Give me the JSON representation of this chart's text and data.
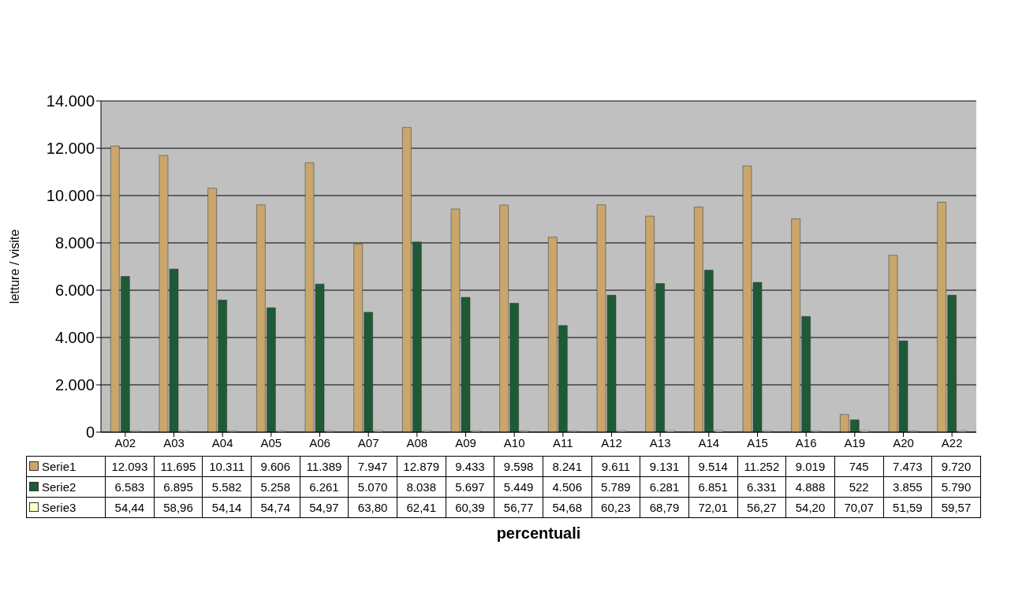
{
  "chart_data": {
    "type": "bar",
    "ylabel": "letture / visite",
    "xlabel": "percentuali",
    "categories": [
      "A02",
      "A03",
      "A04",
      "A05",
      "A06",
      "A07",
      "A08",
      "A09",
      "A10",
      "A11",
      "A12",
      "A13",
      "A14",
      "A15",
      "A16",
      "A19",
      "A20",
      "A22"
    ],
    "series": [
      {
        "name": "Serie1",
        "color": "#c9a66b",
        "values": [
          12093,
          11695,
          10311,
          9606,
          11389,
          7947,
          12879,
          9433,
          9598,
          8241,
          9611,
          9131,
          9514,
          11252,
          9019,
          745,
          7473,
          9720
        ],
        "value_labels": [
          "12.093",
          "11.695",
          "10.311",
          "9.606",
          "11.389",
          "7.947",
          "12.879",
          "9.433",
          "9.598",
          "8.241",
          "9.611",
          "9.131",
          "9.514",
          "11.252",
          "9.019",
          "745",
          "7.473",
          "9.720"
        ]
      },
      {
        "name": "Serie2",
        "color": "#1f5a36",
        "values": [
          6583,
          6895,
          5582,
          5258,
          6261,
          5070,
          8038,
          5697,
          5449,
          4506,
          5789,
          6281,
          6851,
          6331,
          4888,
          522,
          3855,
          5790
        ],
        "value_labels": [
          "6.583",
          "6.895",
          "5.582",
          "5.258",
          "6.261",
          "5.070",
          "8.038",
          "5.697",
          "5.449",
          "4.506",
          "5.789",
          "6.281",
          "6.851",
          "6.331",
          "4.888",
          "522",
          "3.855",
          "5.790"
        ]
      },
      {
        "name": "Serie3",
        "color": "#ffffc0",
        "values": [
          54.44,
          58.96,
          54.14,
          54.74,
          54.97,
          63.8,
          62.41,
          60.39,
          56.77,
          54.68,
          60.23,
          68.79,
          72.01,
          56.27,
          54.2,
          70.07,
          51.59,
          59.57
        ],
        "value_labels": [
          "54,44",
          "58,96",
          "54,14",
          "54,74",
          "54,97",
          "63,80",
          "62,41",
          "60,39",
          "56,77",
          "54,68",
          "60,23",
          "68,79",
          "72,01",
          "56,27",
          "54,20",
          "70,07",
          "51,59",
          "59,57"
        ]
      }
    ],
    "ylim": [
      0,
      14000
    ],
    "yticks": [
      {
        "value": 0,
        "label": "0"
      },
      {
        "value": 2000,
        "label": "2.000"
      },
      {
        "value": 4000,
        "label": "4.000"
      },
      {
        "value": 6000,
        "label": "6.000"
      },
      {
        "value": 8000,
        "label": "8.000"
      },
      {
        "value": 10000,
        "label": "10.000"
      },
      {
        "value": 12000,
        "label": "12.000"
      },
      {
        "value": 14000,
        "label": "14.000"
      }
    ],
    "grid": "y",
    "legend": "bottom"
  }
}
